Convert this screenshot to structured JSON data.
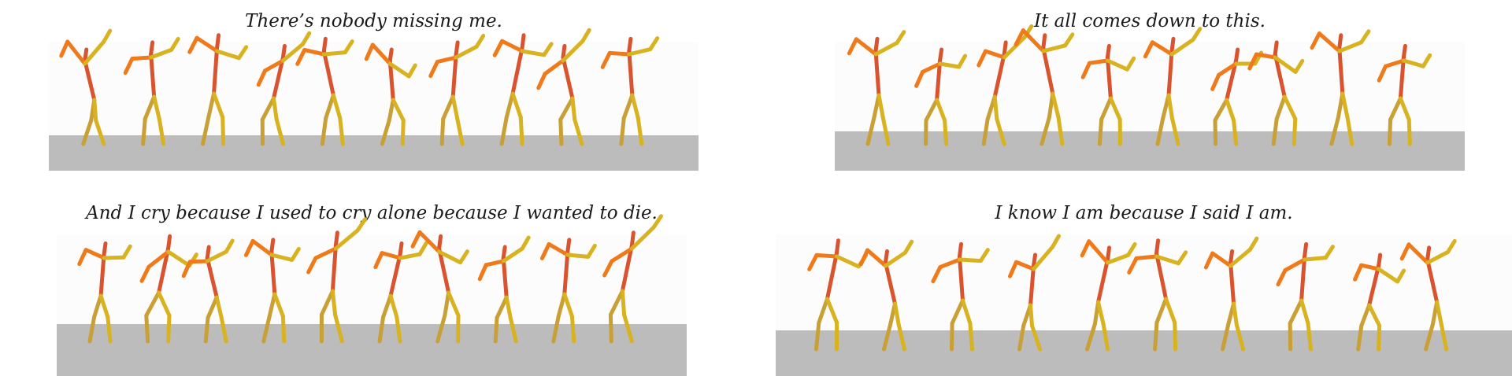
{
  "panels": [
    {
      "caption": "There’s nobody missing me."
    },
    {
      "caption": "It all comes down to this."
    },
    {
      "caption": "And I cry because I used to cry alone because I wanted to die."
    },
    {
      "caption": "I know I am because I said I am."
    }
  ],
  "colors": {
    "floor": "#bcbcbc",
    "stage": "#fcfcfc",
    "orange": "#f07a1a",
    "red": "#d9532f",
    "yellow": "#d8b21f",
    "olive": "#c8a036"
  }
}
